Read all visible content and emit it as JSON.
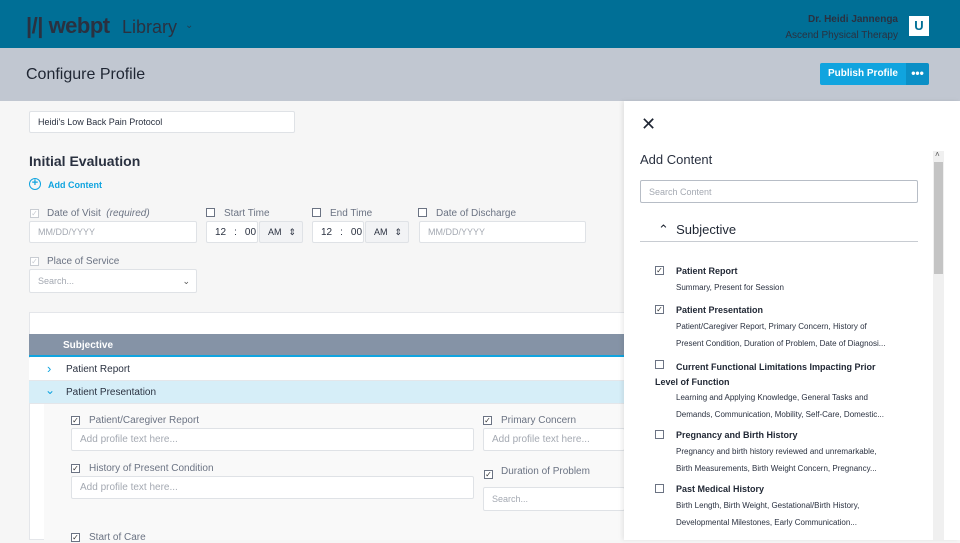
{
  "header": {
    "brand": "webpt",
    "app": "Library",
    "user_name": "Dr. Heidi Jannenga",
    "user_org": "Ascend Physical Therapy",
    "avatar": "U"
  },
  "page": {
    "title": "Configure Profile",
    "publish": "Publish Profile",
    "more": "•••"
  },
  "form": {
    "profile_name": "Heidi's Low Back Pain Protocol",
    "section_title": "Initial Evaluation",
    "add_content": "Add Content",
    "date_of_visit": "Date of Visit",
    "required": "(required)",
    "date_placeholder": "MM/DD/YYYY",
    "start_time": "Start Time",
    "end_time": "End Time",
    "hour": "12",
    "sep": ":",
    "minute": "00",
    "ampm": "AM",
    "date_of_discharge": "Date of Discharge",
    "place_of_service": "Place of Service",
    "search_placeholder": "Search..."
  },
  "note": {
    "section": "Subjective",
    "rows": [
      "Patient Report",
      "Patient Presentation"
    ],
    "fields": {
      "pcr": "Patient/Caregiver Report",
      "pc": "Primary Concern",
      "hpc": "History of Present Condition",
      "dop": "Duration of Problem",
      "soc": "Start of Care",
      "text_placeholder": "Add profile text here...",
      "search_placeholder": "Search..."
    }
  },
  "sidebar": {
    "title": "Add Content",
    "search_placeholder": "Search Content",
    "section": "Subjective",
    "items": [
      {
        "title": "Patient Report",
        "checked": true,
        "d1": "Summary, Present for Session",
        "d2": ""
      },
      {
        "title": "Patient Presentation",
        "checked": true,
        "d1": "Patient/Caregiver Report, Primary Concern, History of",
        "d2": "Present Condition, Duration of Problem, Date of Diagnosi..."
      },
      {
        "title": "Current Functional Limitations Impacting Prior Level of Function",
        "checked": false,
        "d1": "Learning and Applying Knowledge, General Tasks and",
        "d2": "Demands, Communication, Mobility, Self-Care, Domestic..."
      },
      {
        "title": "Pregnancy and Birth History",
        "checked": false,
        "d1": "Pregnancy and birth history reviewed and unremarkable,",
        "d2": "Birth Measurements, Birth Weight Concern, Pregnancy..."
      },
      {
        "title": "Past Medical History",
        "checked": false,
        "d1": "Birth Length, Birth Weight, Gestational/Birth History,",
        "d2": "Developmental Milestones, Early Communication..."
      }
    ]
  },
  "colors": {
    "header": "#006f96",
    "accent": "#10a4df",
    "subheader": "#c1c7d1",
    "section_bar": "#8593a6",
    "selected_row": "#d6eef8"
  }
}
